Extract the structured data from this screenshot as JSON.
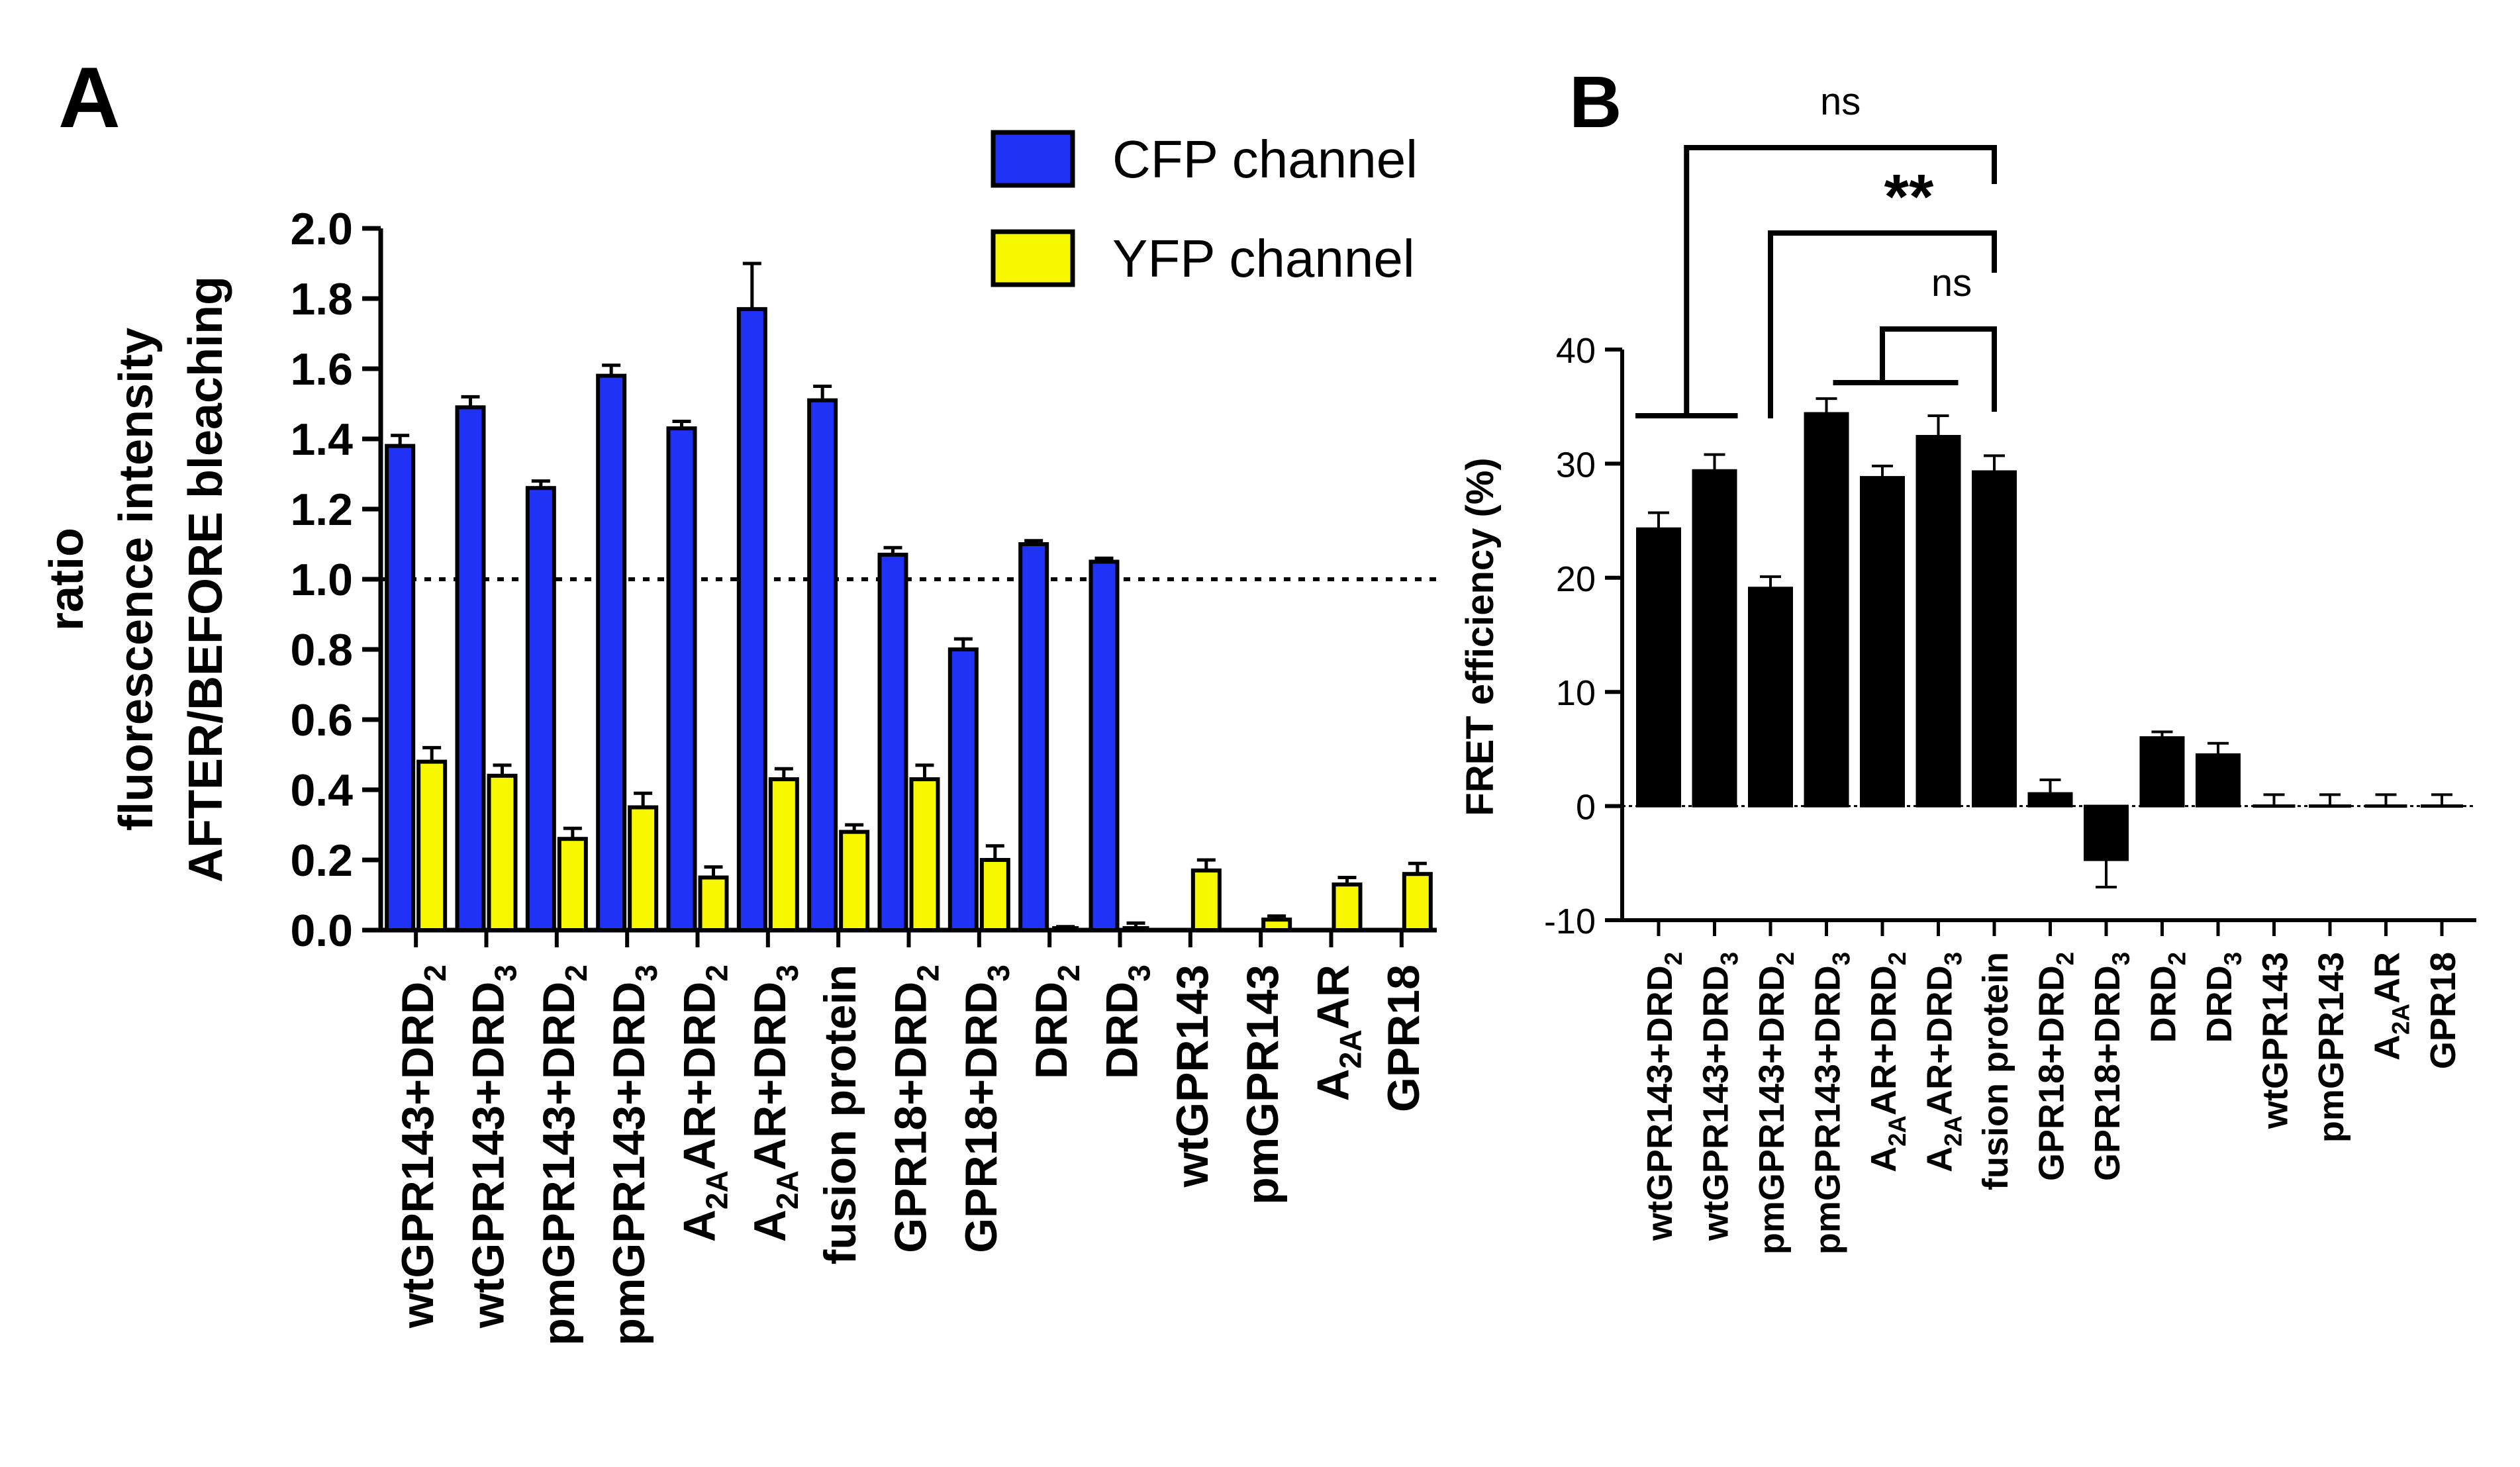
{
  "panels": {
    "a_label": "A",
    "b_label": "B"
  },
  "legend": [
    {
      "label": "CFP channel",
      "color": "#1f32f5"
    },
    {
      "label": "YFP channel",
      "color": "#f7f700"
    }
  ],
  "chart_data": [
    {
      "type": "bar",
      "title": "",
      "ylabel_lines": [
        "ratio",
        "fluorescence intensity",
        "AFTER/BEFORE bleaching"
      ],
      "ylim": [
        0,
        2.0
      ],
      "yticks": [
        "0.0",
        "0.2",
        "0.4",
        "0.6",
        "0.8",
        "1.0",
        "1.2",
        "1.4",
        "1.6",
        "1.8",
        "2.0"
      ],
      "reference_line": 1.0,
      "categories": [
        {
          "main": "wtGPR143+DRD",
          "sub": "2"
        },
        {
          "main": "wtGPR143+DRD",
          "sub": "3"
        },
        {
          "main": "pmGPR143+DRD",
          "sub": "2"
        },
        {
          "main": "pmGPR143+DRD",
          "sub": "3"
        },
        {
          "pre": "A",
          "sub": "2A",
          "main": "AR+DRD",
          "sub2": "2"
        },
        {
          "pre": "A",
          "sub": "2A",
          "main": "AR+DRD",
          "sub2": "3"
        },
        {
          "main": "fusion protein"
        },
        {
          "main": "GPR18+DRD",
          "sub": "2"
        },
        {
          "main": "GPR18+DRD",
          "sub": "3"
        },
        {
          "main": "DRD",
          "sub": "2"
        },
        {
          "main": "DRD",
          "sub": "3"
        },
        {
          "main": "wtGPR143"
        },
        {
          "main": "pmGPR143"
        },
        {
          "pre": "A",
          "sub": "2A",
          "main": "AR"
        },
        {
          "main": "GPR18"
        }
      ],
      "series": [
        {
          "name": "CFP channel",
          "color": "#1f32f5",
          "values": [
            1.38,
            1.49,
            1.26,
            1.58,
            1.43,
            1.77,
            1.51,
            1.07,
            0.8,
            1.1,
            1.05,
            null,
            null,
            null,
            null
          ],
          "errors": [
            0.03,
            0.03,
            0.02,
            0.03,
            0.02,
            0.13,
            0.04,
            0.02,
            0.03,
            0.01,
            0.01,
            null,
            null,
            null,
            null
          ]
        },
        {
          "name": "YFP channel",
          "color": "#f7f700",
          "values": [
            0.48,
            0.44,
            0.26,
            0.35,
            0.15,
            0.43,
            0.28,
            0.43,
            0.2,
            0.0,
            0.0,
            0.17,
            0.03,
            0.13,
            0.16
          ],
          "errors": [
            0.04,
            0.03,
            0.03,
            0.04,
            0.03,
            0.03,
            0.02,
            0.04,
            0.04,
            0.01,
            0.02,
            0.03,
            0.01,
            0.02,
            0.03
          ]
        }
      ]
    },
    {
      "type": "bar",
      "title": "",
      "ylabel": "FRET efficiency (%)",
      "ylim": [
        -10,
        40
      ],
      "yticks": [
        "-10",
        "0",
        "10",
        "20",
        "30",
        "40"
      ],
      "reference_line": 0,
      "categories": [
        {
          "main": "wtGPR143+DRD",
          "sub": "2"
        },
        {
          "main": "wtGPR143+DRD",
          "sub": "3"
        },
        {
          "main": "pmGPR143+DRD",
          "sub": "2"
        },
        {
          "main": "pmGPR143+DRD",
          "sub": "3"
        },
        {
          "pre": "A",
          "sub": "2A",
          "main": "AR+DRD",
          "sub2": "2"
        },
        {
          "pre": "A",
          "sub": "2A",
          "main": "AR+DRD",
          "sub2": "3"
        },
        {
          "main": "fusion protein"
        },
        {
          "main": "GPR18+DRD",
          "sub": "2"
        },
        {
          "main": "GPR18+DRD",
          "sub": "3"
        },
        {
          "main": "DRD",
          "sub": "2"
        },
        {
          "main": "DRD",
          "sub": "3"
        },
        {
          "main": "wtGPR143"
        },
        {
          "main": "pmGPR143"
        },
        {
          "pre": "A",
          "sub": "2A",
          "main": "AR"
        },
        {
          "main": "GPR18"
        }
      ],
      "series": [
        {
          "name": "FRET efficiency",
          "color": "#000000",
          "values": [
            24.3,
            29.4,
            19.1,
            34.4,
            28.8,
            32.4,
            29.3,
            1.1,
            -4.7,
            6.0,
            4.5,
            0,
            0,
            0,
            0
          ],
          "errors": [
            1.4,
            1.4,
            1.0,
            1.3,
            1.0,
            1.8,
            1.4,
            1.2,
            2.4,
            0.5,
            1.0,
            1.0,
            1.0,
            1.0,
            1.0
          ]
        }
      ],
      "annotations": [
        {
          "text": "ns",
          "from": [
            0,
            1
          ],
          "to": 6,
          "bold": false
        },
        {
          "text": "**",
          "from": [
            2
          ],
          "to": 6,
          "bold": true
        },
        {
          "text": "ns",
          "from": [
            3,
            4,
            5
          ],
          "to": 6,
          "bold": false
        }
      ]
    }
  ]
}
